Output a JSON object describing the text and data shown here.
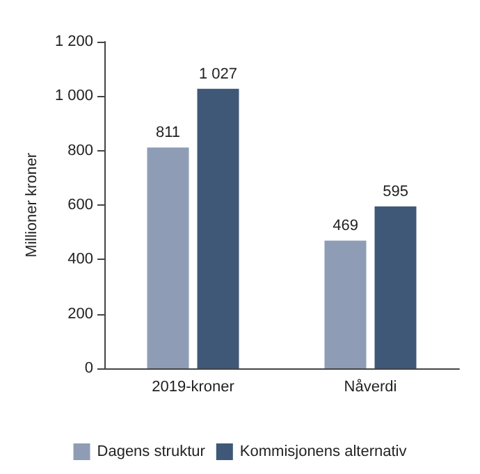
{
  "chart_data": {
    "type": "bar",
    "categories": [
      "2019-kroner",
      "Nåverdi"
    ],
    "ylabel": "Millioner kroner",
    "ylim": [
      0,
      1200
    ],
    "yticks": [
      0,
      200,
      400,
      600,
      800,
      {
        "value": 1000,
        "label": "1 000"
      },
      {
        "value": 1200,
        "label": "1 200"
      }
    ],
    "series": [
      {
        "name": "Dagens struktur",
        "color": "#8e9db5",
        "values": [
          811,
          469
        ],
        "value_labels": [
          "811",
          "469"
        ]
      },
      {
        "name": "Kommisjonens alternativ",
        "color": "#3f5878",
        "values": [
          1027,
          595
        ],
        "value_labels": [
          "1 027",
          "595"
        ]
      }
    ],
    "legend": "bottom",
    "grid": false
  }
}
